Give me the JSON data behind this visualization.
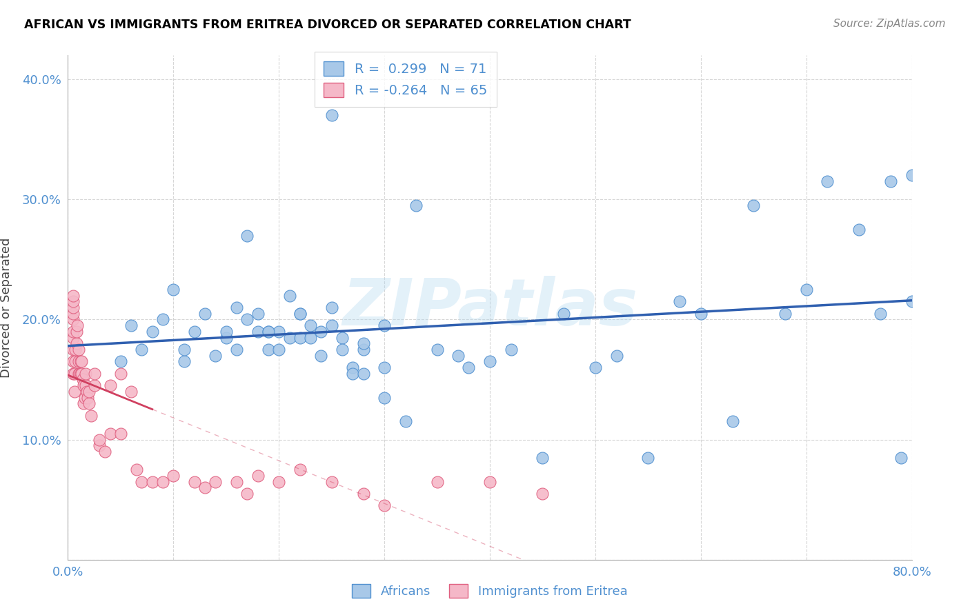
{
  "title": "AFRICAN VS IMMIGRANTS FROM ERITREA DIVORCED OR SEPARATED CORRELATION CHART",
  "source": "Source: ZipAtlas.com",
  "ylabel": "Divorced or Separated",
  "watermark": "ZIPatlas",
  "xlim": [
    0.0,
    0.8
  ],
  "ylim": [
    0.0,
    0.42
  ],
  "xticks": [
    0.0,
    0.1,
    0.2,
    0.3,
    0.4,
    0.5,
    0.6,
    0.7,
    0.8
  ],
  "xticklabels": [
    "0.0%",
    "",
    "",
    "",
    "",
    "",
    "",
    "",
    "80.0%"
  ],
  "yticks": [
    0.0,
    0.1,
    0.2,
    0.3,
    0.4
  ],
  "yticklabels": [
    "",
    "10.0%",
    "20.0%",
    "30.0%",
    "40.0%"
  ],
  "blue_R": 0.299,
  "blue_N": 71,
  "pink_R": -0.264,
  "pink_N": 65,
  "blue_color": "#a8c8e8",
  "pink_color": "#f5b8c8",
  "blue_edge_color": "#5090d0",
  "pink_edge_color": "#e06080",
  "blue_line_color": "#3060b0",
  "pink_line_color": "#d04060",
  "grid_color": "#cccccc",
  "tick_color": "#5090d0",
  "legend_label_blue": "Africans",
  "legend_label_pink": "Immigrants from Eritrea",
  "blue_scatter_x": [
    0.05,
    0.06,
    0.07,
    0.08,
    0.09,
    0.1,
    0.11,
    0.11,
    0.12,
    0.13,
    0.14,
    0.15,
    0.15,
    0.16,
    0.16,
    0.17,
    0.17,
    0.18,
    0.18,
    0.19,
    0.19,
    0.2,
    0.2,
    0.21,
    0.21,
    0.22,
    0.22,
    0.23,
    0.23,
    0.24,
    0.24,
    0.25,
    0.25,
    0.26,
    0.26,
    0.27,
    0.27,
    0.28,
    0.28,
    0.3,
    0.3,
    0.3,
    0.32,
    0.33,
    0.35,
    0.37,
    0.38,
    0.4,
    0.42,
    0.45,
    0.47,
    0.5,
    0.52,
    0.55,
    0.58,
    0.6,
    0.63,
    0.65,
    0.68,
    0.7,
    0.72,
    0.75,
    0.77,
    0.78,
    0.79,
    0.8,
    0.8,
    0.25,
    0.28,
    0.19,
    0.22
  ],
  "blue_scatter_y": [
    0.165,
    0.195,
    0.175,
    0.19,
    0.2,
    0.225,
    0.165,
    0.175,
    0.19,
    0.205,
    0.17,
    0.185,
    0.19,
    0.175,
    0.21,
    0.2,
    0.27,
    0.19,
    0.205,
    0.175,
    0.19,
    0.175,
    0.19,
    0.22,
    0.185,
    0.185,
    0.205,
    0.185,
    0.195,
    0.17,
    0.19,
    0.195,
    0.37,
    0.185,
    0.175,
    0.16,
    0.155,
    0.155,
    0.175,
    0.195,
    0.16,
    0.135,
    0.115,
    0.295,
    0.175,
    0.17,
    0.16,
    0.165,
    0.175,
    0.085,
    0.205,
    0.16,
    0.17,
    0.085,
    0.215,
    0.205,
    0.115,
    0.295,
    0.205,
    0.225,
    0.315,
    0.275,
    0.205,
    0.315,
    0.085,
    0.215,
    0.32,
    0.21,
    0.18,
    0.19,
    0.205
  ],
  "pink_scatter_x": [
    0.005,
    0.005,
    0.005,
    0.005,
    0.005,
    0.005,
    0.005,
    0.005,
    0.005,
    0.005,
    0.006,
    0.006,
    0.007,
    0.007,
    0.008,
    0.008,
    0.009,
    0.01,
    0.01,
    0.01,
    0.011,
    0.012,
    0.012,
    0.013,
    0.013,
    0.014,
    0.015,
    0.015,
    0.016,
    0.017,
    0.017,
    0.018,
    0.019,
    0.02,
    0.02,
    0.022,
    0.025,
    0.025,
    0.03,
    0.03,
    0.035,
    0.04,
    0.04,
    0.05,
    0.05,
    0.06,
    0.065,
    0.07,
    0.08,
    0.09,
    0.1,
    0.12,
    0.13,
    0.14,
    0.16,
    0.17,
    0.18,
    0.2,
    0.22,
    0.25,
    0.28,
    0.3,
    0.35,
    0.4,
    0.45
  ],
  "pink_scatter_y": [
    0.155,
    0.165,
    0.175,
    0.185,
    0.19,
    0.2,
    0.205,
    0.21,
    0.215,
    0.22,
    0.14,
    0.155,
    0.165,
    0.175,
    0.18,
    0.19,
    0.195,
    0.155,
    0.165,
    0.175,
    0.155,
    0.155,
    0.165,
    0.155,
    0.165,
    0.15,
    0.13,
    0.145,
    0.135,
    0.145,
    0.155,
    0.14,
    0.135,
    0.13,
    0.14,
    0.12,
    0.145,
    0.155,
    0.095,
    0.1,
    0.09,
    0.145,
    0.105,
    0.155,
    0.105,
    0.14,
    0.075,
    0.065,
    0.065,
    0.065,
    0.07,
    0.065,
    0.06,
    0.065,
    0.065,
    0.055,
    0.07,
    0.065,
    0.075,
    0.065,
    0.055,
    0.045,
    0.065,
    0.065,
    0.055
  ]
}
